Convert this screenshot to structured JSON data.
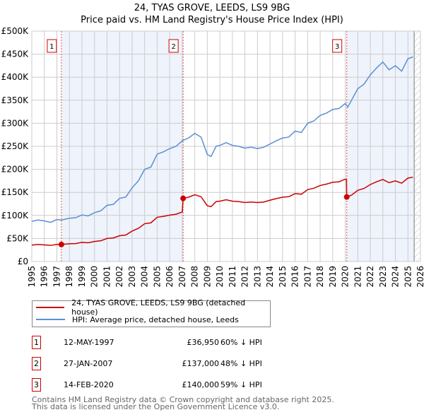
{
  "chart_data": {
    "type": "line",
    "title": "24, TYAS GROVE, LEEDS, LS9 9BG",
    "subtitle": "Price paid vs. HM Land Registry's House Price Index (HPI)",
    "xlim": [
      1995,
      2026
    ],
    "ylim": [
      0,
      500000
    ],
    "x_ticks": [
      "1995",
      "1996",
      "1997",
      "1998",
      "1999",
      "2000",
      "2001",
      "2002",
      "2003",
      "2004",
      "2005",
      "2006",
      "2007",
      "2008",
      "2009",
      "2010",
      "2011",
      "2012",
      "2013",
      "2014",
      "2015",
      "2016",
      "2017",
      "2018",
      "2019",
      "2020",
      "2021",
      "2022",
      "2023",
      "2024",
      "2025",
      "2026"
    ],
    "y_ticks": [
      {
        "v": 0,
        "label": "£0"
      },
      {
        "v": 50000,
        "label": "£50K"
      },
      {
        "v": 100000,
        "label": "£100K"
      },
      {
        "v": 150000,
        "label": "£150K"
      },
      {
        "v": 200000,
        "label": "£200K"
      },
      {
        "v": 250000,
        "label": "£250K"
      },
      {
        "v": 300000,
        "label": "£300K"
      },
      {
        "v": 350000,
        "label": "£350K"
      },
      {
        "v": 400000,
        "label": "£400K"
      },
      {
        "v": 450000,
        "label": "£450K"
      },
      {
        "v": 500000,
        "label": "£500K"
      }
    ],
    "grid": true,
    "shaded_ranges": [
      [
        1997.36,
        2007.07
      ],
      [
        2020.12,
        2025.5
      ]
    ],
    "hatched_after": 2025.5,
    "series": [
      {
        "name": "24, TYAS GROVE, LEEDS, LS9 9BG (detached house)",
        "color": "#cc0000",
        "points": [
          [
            1995,
            35700
          ],
          [
            1995.5,
            37000
          ],
          [
            1996,
            36000
          ],
          [
            1996.5,
            35000
          ],
          [
            1997,
            37000
          ],
          [
            1997.36,
            36950
          ],
          [
            1998,
            38600
          ],
          [
            1998.5,
            39000
          ],
          [
            1999,
            41500
          ],
          [
            1999.5,
            40600
          ],
          [
            2000,
            43500
          ],
          [
            2000.5,
            45000
          ],
          [
            2001,
            50000
          ],
          [
            2001.5,
            51000
          ],
          [
            2002,
            56000
          ],
          [
            2002.5,
            57500
          ],
          [
            2003,
            66000
          ],
          [
            2003.5,
            72000
          ],
          [
            2004,
            82000
          ],
          [
            2004.5,
            84000
          ],
          [
            2005,
            96000
          ],
          [
            2005.5,
            98000
          ],
          [
            2006,
            100600
          ],
          [
            2006.5,
            102600
          ],
          [
            2007.0,
            107600
          ],
          [
            2007.07,
            137000
          ],
          [
            2007.5,
            139600
          ],
          [
            2008,
            144800
          ],
          [
            2008.5,
            140600
          ],
          [
            2009,
            121000
          ],
          [
            2009.3,
            119000
          ],
          [
            2009.7,
            130000
          ],
          [
            2010,
            131000
          ],
          [
            2010.5,
            134000
          ],
          [
            2011,
            131000
          ],
          [
            2011.5,
            130000
          ],
          [
            2012,
            128000
          ],
          [
            2012.5,
            129000
          ],
          [
            2013,
            128000
          ],
          [
            2013.5,
            129000
          ],
          [
            2014,
            133000
          ],
          [
            2014.5,
            136500
          ],
          [
            2015,
            139600
          ],
          [
            2015.5,
            140700
          ],
          [
            2016,
            147400
          ],
          [
            2016.5,
            146000
          ],
          [
            2017,
            156000
          ],
          [
            2017.5,
            159000
          ],
          [
            2018,
            165000
          ],
          [
            2018.5,
            168000
          ],
          [
            2019,
            172000
          ],
          [
            2019.5,
            173000
          ],
          [
            2020,
            178700
          ],
          [
            2020.1,
            178000
          ],
          [
            2020.12,
            140000
          ],
          [
            2020.5,
            144000
          ],
          [
            2021,
            154500
          ],
          [
            2021.5,
            158600
          ],
          [
            2022,
            167000
          ],
          [
            2022.5,
            173000
          ],
          [
            2023,
            178000
          ],
          [
            2023.5,
            171000
          ],
          [
            2024,
            175000
          ],
          [
            2024.5,
            170000
          ],
          [
            2025,
            181000
          ],
          [
            2025.4,
            183000
          ]
        ]
      },
      {
        "name": "HPI: Average price, detached house, Leeds",
        "color": "#5b8ed6",
        "points": [
          [
            1995,
            87000
          ],
          [
            1995.5,
            90000
          ],
          [
            1996,
            88000
          ],
          [
            1996.5,
            85000
          ],
          [
            1997,
            91000
          ],
          [
            1997.36,
            90000
          ],
          [
            1998,
            94000
          ],
          [
            1998.5,
            95000
          ],
          [
            1999,
            101000
          ],
          [
            1999.5,
            99000
          ],
          [
            2000,
            106000
          ],
          [
            2000.5,
            110000
          ],
          [
            2001,
            122000
          ],
          [
            2001.5,
            124000
          ],
          [
            2002,
            137000
          ],
          [
            2002.5,
            140000
          ],
          [
            2003,
            160000
          ],
          [
            2003.5,
            175000
          ],
          [
            2004,
            200000
          ],
          [
            2004.5,
            205000
          ],
          [
            2005,
            233000
          ],
          [
            2005.5,
            238000
          ],
          [
            2006,
            245000
          ],
          [
            2006.5,
            250000
          ],
          [
            2007,
            262000
          ],
          [
            2007.5,
            268000
          ],
          [
            2008,
            278000
          ],
          [
            2008.5,
            270000
          ],
          [
            2009,
            232000
          ],
          [
            2009.3,
            228000
          ],
          [
            2009.7,
            250000
          ],
          [
            2010,
            252000
          ],
          [
            2010.5,
            258000
          ],
          [
            2011,
            252000
          ],
          [
            2011.5,
            250000
          ],
          [
            2012,
            246000
          ],
          [
            2012.5,
            248000
          ],
          [
            2013,
            245000
          ],
          [
            2013.5,
            248000
          ],
          [
            2014,
            255000
          ],
          [
            2014.5,
            262000
          ],
          [
            2015,
            268000
          ],
          [
            2015.5,
            270000
          ],
          [
            2016,
            283000
          ],
          [
            2016.5,
            280000
          ],
          [
            2017,
            300000
          ],
          [
            2017.5,
            305000
          ],
          [
            2018,
            317000
          ],
          [
            2018.5,
            322000
          ],
          [
            2019,
            330000
          ],
          [
            2019.5,
            332000
          ],
          [
            2020,
            343000
          ],
          [
            2020.2,
            335000
          ],
          [
            2020.5,
            350000
          ],
          [
            2021,
            375000
          ],
          [
            2021.5,
            385000
          ],
          [
            2022,
            405000
          ],
          [
            2022.5,
            420000
          ],
          [
            2023,
            433000
          ],
          [
            2023.5,
            416000
          ],
          [
            2024,
            425000
          ],
          [
            2024.5,
            413000
          ],
          [
            2025,
            440000
          ],
          [
            2025.4,
            444000
          ]
        ]
      }
    ],
    "transactions": [
      {
        "n": "1",
        "x": 1997.36,
        "price": 36950,
        "date": "12-MAY-1997",
        "price_label": "£36,950",
        "hpi_diff": "60% ↓ HPI"
      },
      {
        "n": "2",
        "x": 2007.07,
        "price": 137000,
        "date": "27-JAN-2007",
        "price_label": "£137,000",
        "hpi_diff": "48% ↓ HPI"
      },
      {
        "n": "3",
        "x": 2020.12,
        "price": 140000,
        "date": "14-FEB-2020",
        "price_label": "£140,000",
        "hpi_diff": "59% ↓ HPI"
      }
    ]
  },
  "footer": {
    "line1": "Contains HM Land Registry data © Crown copyright and database right 2025.",
    "line2": "This data is licensed under the Open Government Licence v3.0."
  }
}
